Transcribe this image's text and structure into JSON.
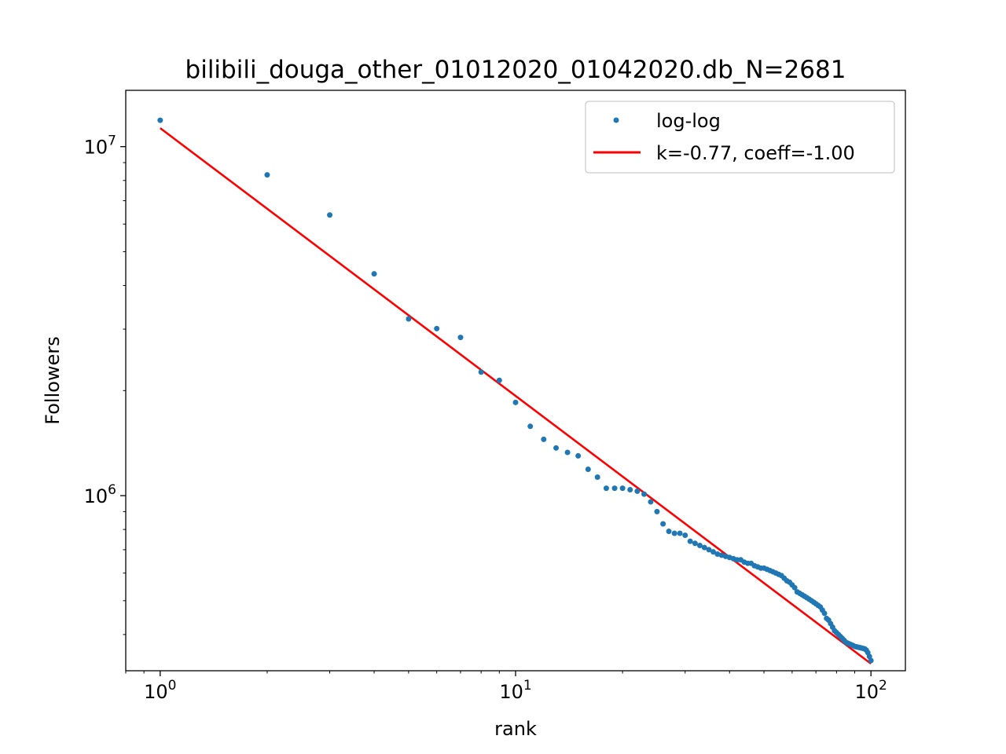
{
  "chart_data": {
    "type": "scatter",
    "title": "bilibili_douga_other_01012020_01042020.db_N=2681",
    "xlabel": "rank",
    "ylabel": "Followers",
    "xscale": "log",
    "yscale": "log",
    "xlim": [
      0.8,
      125
    ],
    "ylim": [
      315000,
      14500000
    ],
    "grid": false,
    "legend_position": "top-right",
    "x_ticks": [
      {
        "value": 1,
        "base": "10",
        "exp": "0"
      },
      {
        "value": 10,
        "base": "10",
        "exp": "1"
      },
      {
        "value": 100,
        "base": "10",
        "exp": "2"
      }
    ],
    "y_ticks": [
      {
        "value": 1000000,
        "base": "10",
        "exp": "6"
      },
      {
        "value": 10000000,
        "base": "10",
        "exp": "7"
      }
    ],
    "series": [
      {
        "name": "log-log",
        "kind": "points",
        "color": "#1f77b4",
        "x": [
          1,
          2,
          3,
          4,
          5,
          6,
          7,
          8,
          9,
          10,
          11,
          12,
          13,
          14,
          15,
          16,
          17,
          18,
          19,
          20,
          21,
          22,
          23,
          24,
          25,
          26,
          27,
          28,
          29,
          30,
          31,
          32,
          33,
          34,
          35,
          36,
          37,
          38,
          39,
          40,
          41,
          42,
          43,
          44,
          45,
          46,
          47,
          48,
          49,
          50,
          51,
          52,
          53,
          54,
          55,
          56,
          57,
          58,
          59,
          60,
          61,
          62,
          63,
          64,
          65,
          66,
          67,
          68,
          69,
          70,
          71,
          72,
          73,
          74,
          75,
          76,
          77,
          78,
          79,
          80,
          81,
          82,
          83,
          84,
          85,
          86,
          87,
          88,
          89,
          90,
          91,
          92,
          93,
          94,
          95,
          96,
          97,
          98,
          99,
          100
        ],
        "y": [
          11900000,
          8300000,
          6370000,
          4320000,
          3210000,
          3010000,
          2840000,
          2260000,
          2140000,
          1850000,
          1580000,
          1450000,
          1370000,
          1330000,
          1300000,
          1190000,
          1130000,
          1050000,
          1050000,
          1050000,
          1040000,
          1030000,
          1010000,
          960000,
          900000,
          830000,
          790000,
          780000,
          780000,
          770000,
          740000,
          730000,
          720000,
          710000,
          700000,
          690000,
          680000,
          675000,
          670000,
          665000,
          660000,
          655000,
          655000,
          645000,
          640000,
          640000,
          630000,
          625000,
          620000,
          620000,
          615000,
          610000,
          605000,
          600000,
          595000,
          590000,
          580000,
          570000,
          565000,
          555000,
          545000,
          530000,
          525000,
          520000,
          515000,
          510000,
          505000,
          500000,
          495000,
          490000,
          485000,
          480000,
          470000,
          460000,
          445000,
          440000,
          430000,
          420000,
          410000,
          405000,
          400000,
          395000,
          390000,
          385000,
          380000,
          378000,
          376000,
          374000,
          372000,
          370000,
          369000,
          368000,
          367000,
          366000,
          365000,
          364000,
          361000,
          355000,
          346000,
          337000
        ]
      },
      {
        "name": "k=-0.77, coeff=-1.00",
        "kind": "line",
        "color": "#ff0000",
        "x": [
          1,
          100
        ],
        "y": [
          11300000,
          330000
        ]
      }
    ]
  }
}
